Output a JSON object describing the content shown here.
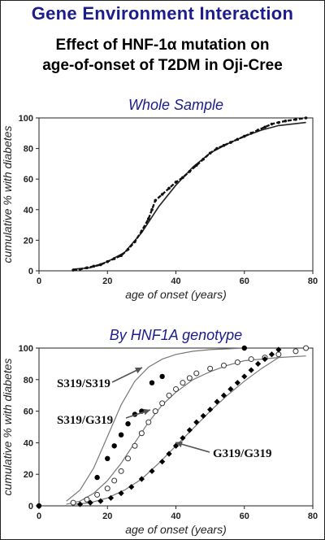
{
  "header": {
    "title": "Gene Environment Interaction",
    "subtitle_line1": "Effect of  HNF-1α  mutation on",
    "subtitle_line2": "age-of-onset of T2DM in Oji-Cree"
  },
  "chart_data": [
    {
      "type": "line",
      "title": "Whole Sample",
      "xlabel": "age of onset (years)",
      "ylabel": "cumulative % with diabetes",
      "xlim": [
        0,
        80
      ],
      "ylim": [
        0,
        100
      ],
      "xticks": [
        "0",
        "20",
        "40",
        "60",
        "80"
      ],
      "yticks": [
        "0",
        "20",
        "40",
        "60",
        "80",
        "100"
      ],
      "grid": false,
      "series": [
        {
          "style": "fitted-curve",
          "x": [
            10,
            15,
            20,
            25,
            30,
            35,
            40,
            45,
            50,
            55,
            60,
            65,
            70,
            78
          ],
          "values": [
            1,
            2,
            6,
            12,
            25,
            42,
            56,
            68,
            77,
            83,
            88,
            92,
            95,
            97
          ]
        },
        {
          "style": "observed-points",
          "x": [
            10,
            12,
            14,
            16,
            18,
            20,
            22,
            24,
            26,
            28,
            30,
            32,
            33,
            34,
            36,
            38,
            40,
            42,
            44,
            46,
            48,
            50,
            52,
            54,
            56,
            58,
            60,
            62,
            64,
            66,
            68,
            70,
            72,
            75,
            78
          ],
          "values": [
            0.5,
            1,
            2,
            3,
            4,
            6,
            8,
            10,
            14,
            19,
            26,
            34,
            40,
            46,
            50,
            54,
            58,
            61,
            65,
            69,
            73,
            77,
            80,
            82,
            84,
            86,
            88,
            90,
            92,
            94,
            96,
            97,
            98,
            99,
            100
          ]
        }
      ]
    },
    {
      "type": "line",
      "title": "By HNF1A genotype",
      "xlabel": "age of onset (years)",
      "ylabel": "cumulative % with diabetes",
      "xlim": [
        0,
        80
      ],
      "ylim": [
        0,
        100
      ],
      "xticks": [
        "0",
        "20",
        "40",
        "60",
        "80"
      ],
      "yticks": [
        "0",
        "20",
        "40",
        "60",
        "80",
        "100"
      ],
      "grid": false,
      "series": [
        {
          "name": "S319/S319",
          "marker": "filled-circle",
          "x": [
            0,
            17,
            20,
            22,
            24,
            26,
            28,
            30,
            33,
            36,
            60
          ],
          "values": [
            0,
            18,
            30,
            38,
            45,
            52,
            58,
            60,
            78,
            82,
            100
          ],
          "fit_x": [
            8,
            12,
            16,
            20,
            24,
            28,
            32,
            36,
            40,
            45,
            50,
            55,
            60
          ],
          "fit_values": [
            3,
            10,
            24,
            44,
            64,
            79,
            88,
            93,
            96,
            98,
            99,
            99.5,
            100
          ]
        },
        {
          "name": "S319/G319",
          "marker": "open-circle",
          "x": [
            10,
            14,
            17,
            20,
            22,
            24,
            26,
            28,
            30,
            32,
            34,
            36,
            38,
            40,
            42,
            44,
            46,
            50,
            54,
            58,
            62,
            66,
            70,
            75,
            78
          ],
          "values": [
            2,
            4,
            7,
            11,
            16,
            22,
            30,
            38,
            46,
            53,
            60,
            65,
            70,
            74,
            78,
            81,
            84,
            87,
            89,
            91,
            93,
            94,
            96,
            98,
            100
          ],
          "fit_x": [
            8,
            12,
            16,
            20,
            24,
            28,
            32,
            36,
            40,
            45,
            50,
            55,
            60,
            65,
            70,
            78
          ],
          "fit_values": [
            1,
            3,
            8,
            16,
            27,
            40,
            53,
            64,
            72,
            80,
            85,
            89,
            92,
            93,
            94,
            95
          ]
        },
        {
          "name": "G319/G319",
          "marker": "filled-diamond",
          "x": [
            12,
            15,
            18,
            21,
            24,
            27,
            30,
            33,
            36,
            38,
            40,
            42,
            44,
            46,
            48,
            50,
            52,
            54,
            56,
            58,
            60,
            62,
            64,
            66,
            68,
            70
          ],
          "values": [
            1,
            2,
            3,
            5,
            8,
            12,
            17,
            22,
            28,
            33,
            38,
            43,
            48,
            53,
            57,
            61,
            66,
            70,
            74,
            78,
            82,
            86,
            90,
            93,
            96,
            99
          ],
          "fit_x": [
            10,
            15,
            20,
            25,
            30,
            35,
            40,
            45,
            50,
            55,
            60,
            65,
            70
          ],
          "fit_values": [
            1,
            2,
            5,
            10,
            17,
            27,
            38,
            49,
            60,
            70,
            79,
            87,
            94
          ]
        }
      ]
    }
  ]
}
